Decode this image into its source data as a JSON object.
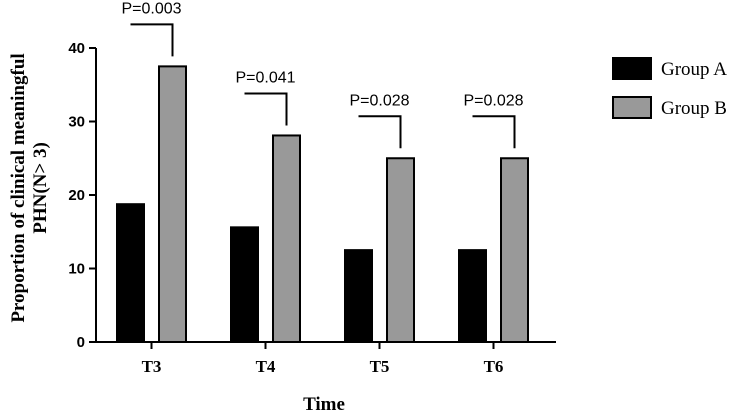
{
  "chart_data": {
    "type": "bar",
    "categories": [
      "T3",
      "T4",
      "T5",
      "T6"
    ],
    "series": [
      {
        "name": "Group A",
        "values": [
          18.75,
          15.6,
          12.5,
          12.5
        ],
        "color": "#000000"
      },
      {
        "name": "Group B",
        "values": [
          37.5,
          28.1,
          25.0,
          25.0
        ],
        "color": "#999999"
      }
    ],
    "p_values": [
      "P=0.003",
      "P=0.041",
      "P=0.028",
      "P=0.028"
    ],
    "xlabel": "Time",
    "ylabel_lines": [
      "Proportion of clinical meaningful",
      "PHN(N> 3)"
    ],
    "ylim": [
      0,
      40
    ],
    "yticks": [
      0,
      10,
      20,
      30,
      40
    ],
    "grid": false,
    "legend_position": "right"
  }
}
